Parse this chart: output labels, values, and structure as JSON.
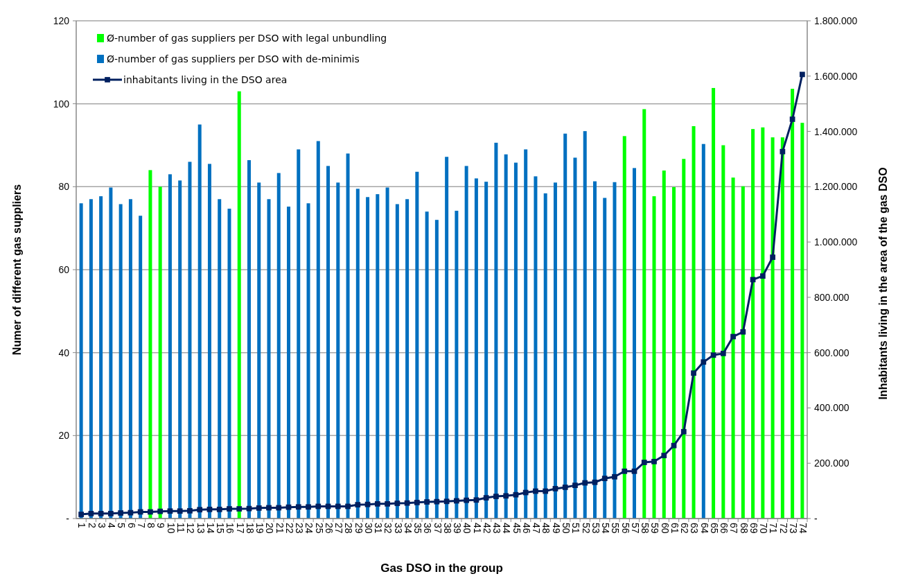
{
  "chart_data": {
    "type": "bar",
    "xlabel": "Gas DSO in the group",
    "ylabel": "Numer of different gas suppliers",
    "y2label": "Inhabitants living in the area of the gas DSO",
    "categories": [
      "1",
      "2",
      "3",
      "4",
      "5",
      "6",
      "7",
      "8",
      "9",
      "10",
      "11",
      "12",
      "13",
      "14",
      "15",
      "16",
      "17",
      "18",
      "19",
      "20",
      "21",
      "22",
      "23",
      "24",
      "25",
      "26",
      "27",
      "28",
      "29",
      "30",
      "31",
      "32",
      "33",
      "34",
      "35",
      "36",
      "37",
      "38",
      "39",
      "40",
      "41",
      "42",
      "43",
      "44",
      "45",
      "46",
      "47",
      "48",
      "49",
      "50",
      "51",
      "52",
      "53",
      "54",
      "55",
      "56",
      "57",
      "58",
      "59",
      "60",
      "61",
      "62",
      "63",
      "64",
      "65",
      "66",
      "67",
      "68",
      "69",
      "70",
      "71",
      "72",
      "73",
      "74"
    ],
    "series": [
      {
        "name": "Ø-number of gas suppliers per DSO with legal unbundling",
        "color": "#00ff00",
        "values": [
          null,
          null,
          null,
          null,
          null,
          null,
          null,
          84,
          80,
          null,
          null,
          null,
          null,
          null,
          null,
          null,
          103,
          null,
          null,
          null,
          null,
          null,
          null,
          null,
          null,
          null,
          null,
          null,
          null,
          null,
          null,
          null,
          null,
          null,
          null,
          null,
          null,
          null,
          null,
          null,
          null,
          null,
          null,
          null,
          null,
          null,
          null,
          null,
          null,
          null,
          null,
          null,
          null,
          null,
          null,
          92.2,
          null,
          98.7,
          77.7,
          83.9,
          79.9,
          86.7,
          94.6,
          null,
          103.8,
          90,
          82.2,
          80.1,
          93.9,
          94.3,
          91.9,
          91.9,
          103.6,
          95.4
        ]
      },
      {
        "name": "Ø-number of gas suppliers per DSO with de-minimis",
        "color": "#0070c0",
        "values": [
          76,
          77,
          77.7,
          79.8,
          75.8,
          77,
          73,
          null,
          null,
          83,
          81.5,
          86,
          95,
          85.5,
          77,
          74.7,
          null,
          86.4,
          81,
          77,
          83.3,
          75.2,
          89,
          76,
          91,
          85,
          81,
          88,
          79.5,
          77.5,
          78.2,
          79.8,
          75.8,
          77,
          83.6,
          74,
          72,
          87.2,
          74.2,
          85,
          82,
          81.2,
          90.6,
          87.8,
          85.8,
          89,
          82.5,
          78.4,
          81,
          92.8,
          87,
          93.4,
          81.3,
          77.3,
          81.1,
          null,
          84.5,
          null,
          null,
          null,
          null,
          null,
          null,
          90.3,
          null,
          null,
          null,
          null,
          null,
          null,
          null,
          null,
          null,
          null
        ]
      },
      {
        "name": "inhabitants living in the DSO area",
        "type": "line",
        "axis": "y2",
        "color": "#002060",
        "marker": "square",
        "values": [
          15000,
          18000,
          18000,
          18000,
          20000,
          21000,
          24000,
          24000,
          26000,
          27000,
          27000,
          28000,
          32000,
          33000,
          33000,
          35000,
          35000,
          36000,
          38000,
          39000,
          39000,
          41000,
          42000,
          42000,
          44000,
          44000,
          44000,
          44000,
          50000,
          51000,
          53000,
          53000,
          55000,
          56000,
          58000,
          60000,
          61000,
          62000,
          64000,
          66000,
          67000,
          75000,
          80000,
          82000,
          86000,
          94000,
          99000,
          99000,
          108000,
          113000,
          120000,
          129000,
          131000,
          145000,
          151000,
          171000,
          171000,
          203000,
          206000,
          228000,
          264000,
          314000,
          526000,
          566000,
          591000,
          597000,
          658000,
          675000,
          864000,
          877000,
          945000,
          1327000,
          1444000,
          1606000
        ]
      }
    ],
    "ylim": [
      0,
      120
    ],
    "yticks": [
      {
        "value": 0,
        "label": "-"
      },
      20,
      40,
      60,
      80,
      100,
      120
    ],
    "y2lim": [
      0,
      1800000
    ],
    "y2ticks": [
      {
        "value": 0,
        "label": "-"
      },
      {
        "value": 200000,
        "label": "200.000"
      },
      {
        "value": 400000,
        "label": "400.000"
      },
      {
        "value": 600000,
        "label": "600.000"
      },
      {
        "value": 800000,
        "label": "800.000"
      },
      {
        "value": 1000000,
        "label": "1.000.000"
      },
      {
        "value": 1200000,
        "label": "1.200.000"
      },
      {
        "value": 1400000,
        "label": "1.400.000"
      },
      {
        "value": 1600000,
        "label": "1.600.000"
      },
      {
        "value": 1800000,
        "label": "1.800.000"
      }
    ],
    "grid": "y",
    "legend": "top left"
  }
}
